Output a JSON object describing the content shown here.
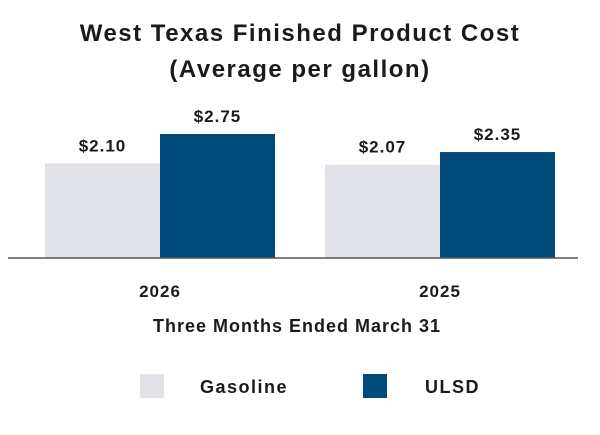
{
  "chart_data": {
    "type": "bar",
    "title": "West Texas Finished Product Cost",
    "subtitle": "(Average per gallon)",
    "xlabel": "Three Months Ended March 31",
    "ylabel": "",
    "categories": [
      "2026",
      "2025"
    ],
    "series": [
      {
        "name": "Gasoline",
        "color": "#e1e2e8",
        "values": [
          2.1,
          2.07
        ],
        "labels": [
          "$2.10",
          "$2.07"
        ]
      },
      {
        "name": "ULSD",
        "color": "#004b7c",
        "values": [
          2.75,
          2.35
        ],
        "labels": [
          "$2.75",
          "$2.35"
        ]
      }
    ],
    "ylim": [
      0,
      2.75
    ],
    "grid": false,
    "legend": "bottom-center",
    "axis_color": "#555555"
  }
}
